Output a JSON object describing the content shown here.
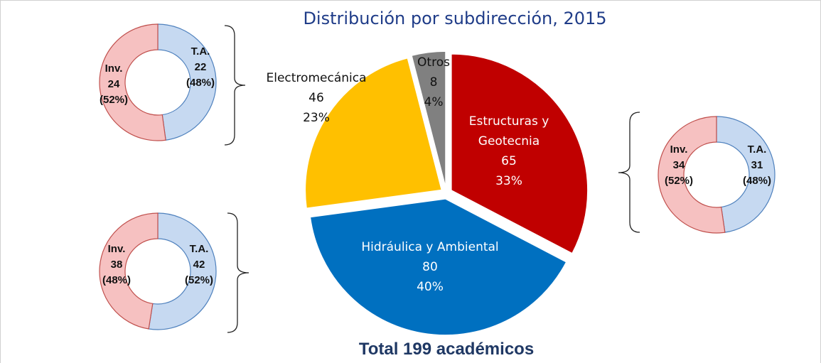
{
  "chart_data": [
    {
      "type": "pie",
      "title": "Distribución por subdirección, 2015",
      "annotation": "Total 199 académicos",
      "categories": [
        "Estructuras y Geotecnia",
        "Hidráulica y Ambiental",
        "Electromecánica",
        "Otros"
      ],
      "values": [
        65,
        80,
        46,
        8
      ],
      "percent_labels": [
        "33%",
        "40%",
        "23%",
        "4%"
      ],
      "colors": [
        "#c00000",
        "#0070c0",
        "#ffc000",
        "#808080"
      ]
    },
    {
      "type": "donut",
      "categories": [
        "T.A.",
        "Inv."
      ],
      "values": [
        22,
        24
      ],
      "percent_labels": [
        "(48%)",
        "(52%)"
      ],
      "colors": [
        "#c6d9f1",
        "#f6c1c1"
      ]
    },
    {
      "type": "donut",
      "categories": [
        "T.A.",
        "Inv."
      ],
      "values": [
        42,
        38
      ],
      "percent_labels": [
        "(52%)",
        "(48%)"
      ],
      "colors": [
        "#c6d9f1",
        "#f6c1c1"
      ]
    },
    {
      "type": "donut",
      "categories": [
        "T.A.",
        "Inv."
      ],
      "values": [
        31,
        34
      ],
      "percent_labels": [
        "(48%)",
        "(52%)"
      ],
      "colors": [
        "#c6d9f1",
        "#f6c1c1"
      ]
    }
  ]
}
